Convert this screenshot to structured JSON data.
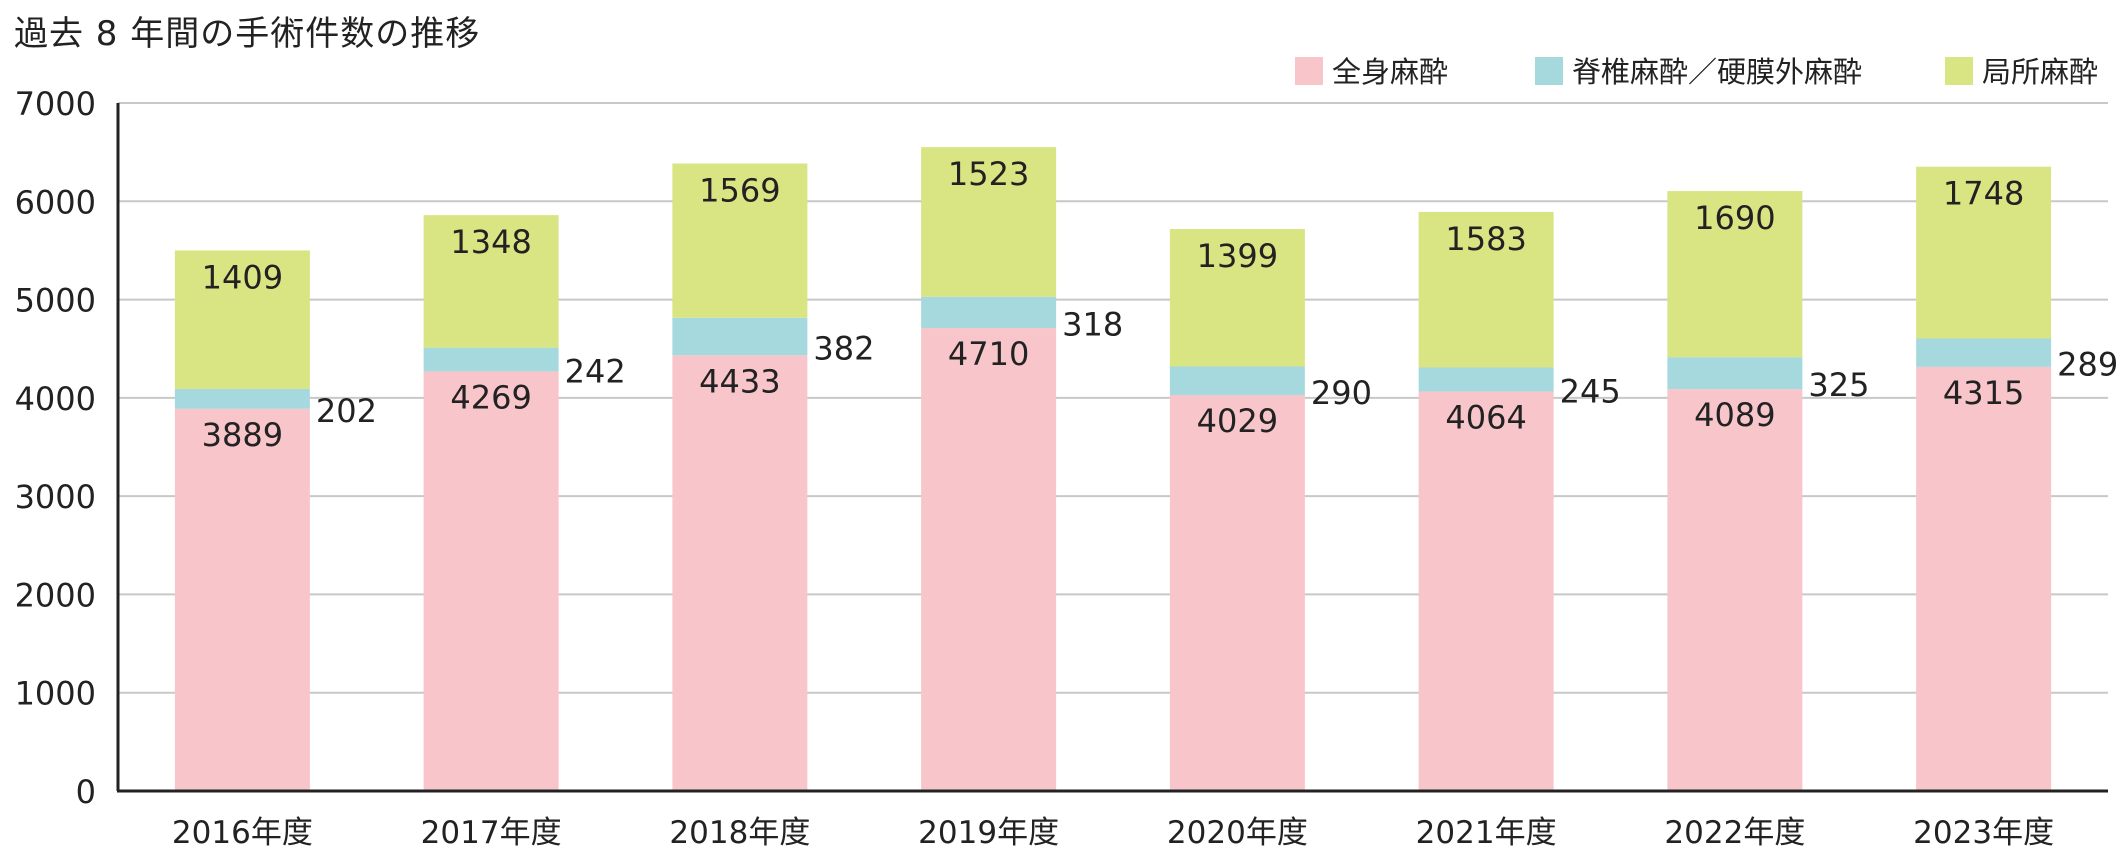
{
  "chart_data": {
    "type": "bar",
    "stacked": true,
    "title": "過去 8 年間の手術件数の推移",
    "xlabel": "",
    "ylabel": "",
    "categories": [
      "2016年度",
      "2017年度",
      "2018年度",
      "2019年度",
      "2020年度",
      "2021年度",
      "2022年度",
      "2023年度"
    ],
    "series": [
      {
        "name": "全身麻酔",
        "color": "#f7c5ca",
        "values": [
          3889,
          4269,
          4433,
          4710,
          4029,
          4064,
          4089,
          4315
        ]
      },
      {
        "name": "脊椎麻酔／硬膜外麻酔",
        "color": "#a5d9de",
        "values": [
          202,
          242,
          382,
          318,
          290,
          245,
          325,
          289
        ]
      },
      {
        "name": "局所麻酔",
        "color": "#d9e483",
        "values": [
          1409,
          1348,
          1569,
          1523,
          1399,
          1583,
          1690,
          1748
        ]
      }
    ],
    "ylim": [
      0,
      7000
    ],
    "yticks": [
      0,
      1000,
      2000,
      3000,
      4000,
      5000,
      6000,
      7000
    ],
    "grid": true,
    "legend_position": "top-right"
  }
}
